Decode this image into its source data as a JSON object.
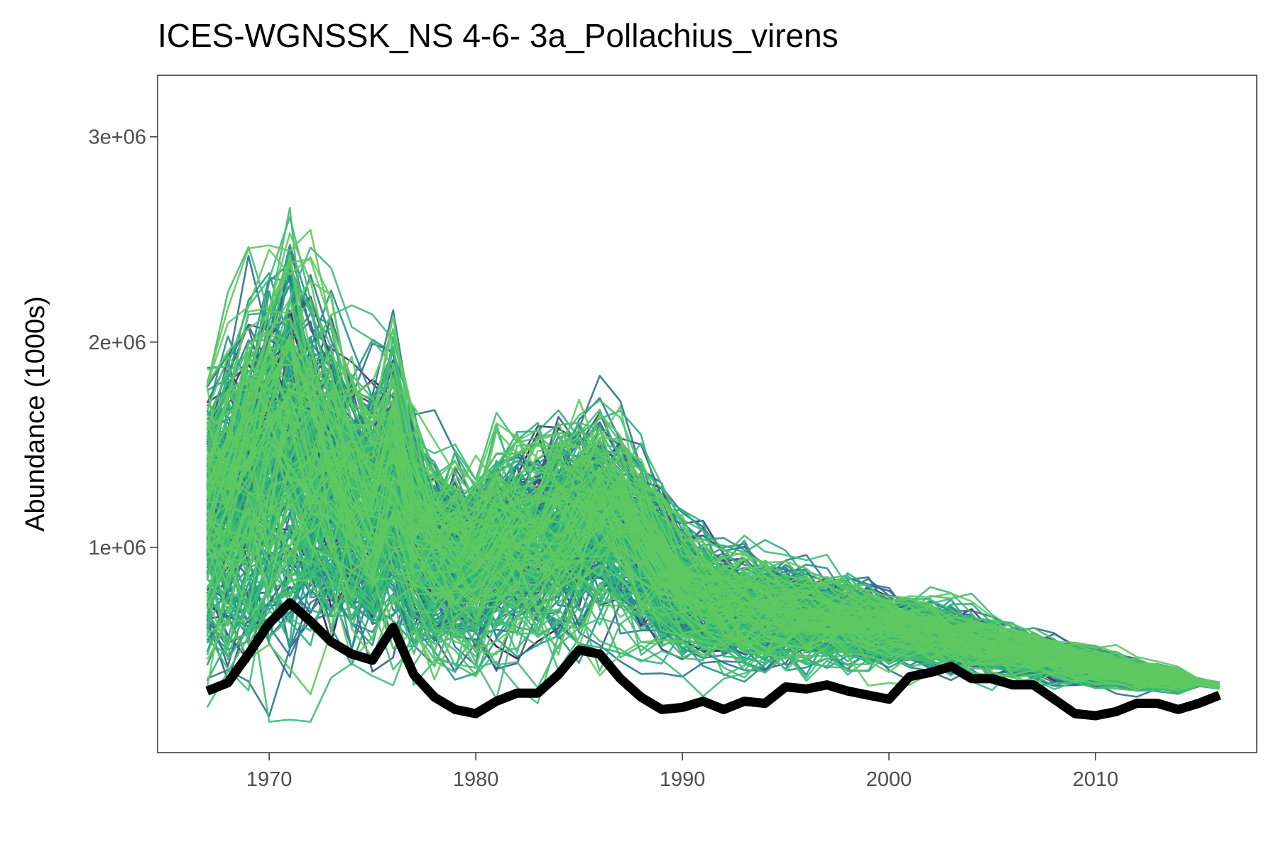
{
  "chart_data": {
    "type": "line",
    "title": "ICES-WGNSSK_NS 4-6- 3a_Pollachius_virens",
    "xlabel": "",
    "ylabel": "Abundance (1000s)",
    "xlim": [
      1964.6,
      2017.8
    ],
    "ylim": [
      0,
      3300000
    ],
    "x_ticks": [
      1970,
      1980,
      1990,
      2000,
      2010
    ],
    "x_tick_labels": [
      "1970",
      "1980",
      "1990",
      "2000",
      "2010"
    ],
    "y_ticks": [
      1000000,
      2000000,
      3000000
    ],
    "y_tick_labels": [
      "1e+06",
      "2e+06",
      "3e+06"
    ],
    "grid": false,
    "legend": "none",
    "colors": {
      "observed": "#000000",
      "palette": [
        "#440154",
        "#472d7b",
        "#3b528b",
        "#2c728e",
        "#21918c",
        "#28ae80",
        "#3fbc73",
        "#5ec962"
      ]
    },
    "ensemble": {
      "count": 300,
      "x_start": 1967,
      "x_end": 2016,
      "median": [
        1150000,
        1230000,
        1330000,
        1420000,
        1520000,
        1420000,
        1350000,
        1230000,
        1190000,
        1330000,
        1070000,
        960000,
        950000,
        920000,
        1020000,
        1040000,
        1060000,
        1100000,
        1130000,
        1180000,
        1120000,
        1030000,
        920000,
        810000,
        760000,
        720000,
        700000,
        690000,
        680000,
        660000,
        650000,
        640000,
        620000,
        600000,
        590000,
        580000,
        560000,
        540000,
        520000,
        500000,
        480000,
        460000,
        440000,
        420000,
        400000,
        380000,
        370000,
        360000,
        345000,
        330000
      ]
    },
    "series": [
      {
        "x": [
          1967,
          1968,
          1969,
          1970,
          1971,
          1972,
          1973,
          1974,
          1975,
          1976,
          1977,
          1978,
          1979,
          1980,
          1981,
          1982,
          1983,
          1984,
          1985,
          1986,
          1987,
          1988,
          1989,
          1990,
          1991,
          1992,
          1993,
          1994,
          1995,
          1996,
          1997,
          1998,
          1999,
          2000,
          2001,
          2002,
          2003,
          2004,
          2005,
          2006,
          2007,
          2008,
          2009,
          2010,
          2011,
          2012,
          2013,
          2014,
          2015,
          2016
        ],
        "y": [
          300000,
          340000,
          480000,
          630000,
          730000,
          640000,
          540000,
          480000,
          450000,
          610000,
          380000,
          270000,
          210000,
          190000,
          250000,
          290000,
          290000,
          380000,
          500000,
          480000,
          360000,
          270000,
          210000,
          220000,
          250000,
          210000,
          250000,
          240000,
          320000,
          310000,
          330000,
          300000,
          280000,
          260000,
          370000,
          390000,
          420000,
          360000,
          360000,
          330000,
          330000,
          260000,
          190000,
          180000,
          200000,
          240000,
          240000,
          210000,
          240000,
          280000
        ]
      }
    ]
  }
}
